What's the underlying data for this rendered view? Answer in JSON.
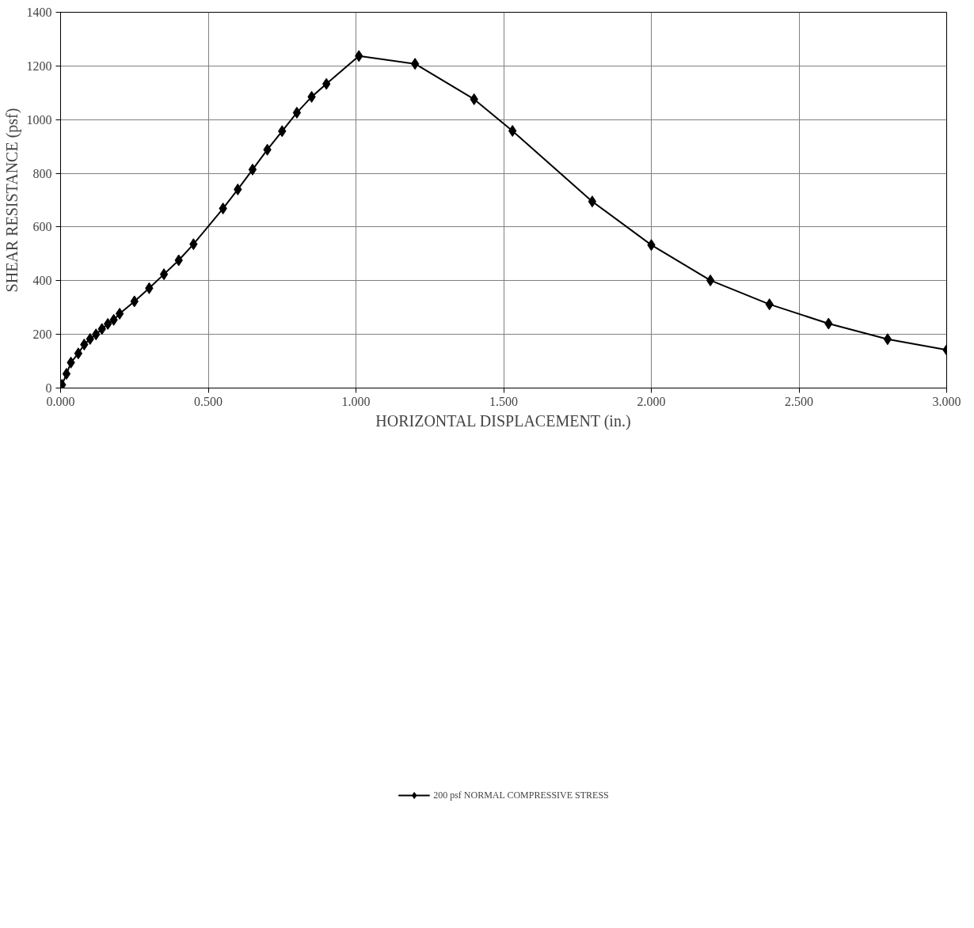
{
  "chart_data": {
    "type": "line",
    "xlabel": "HORIZONTAL DISPLACEMENT (in.)",
    "ylabel": "SHEAR RESISTANCE (psf)",
    "xlim": [
      0,
      3
    ],
    "ylim": [
      0,
      1400
    ],
    "xticks": [
      {
        "value": 0,
        "label": "0.000"
      },
      {
        "value": 0.5,
        "label": "0.500"
      },
      {
        "value": 1,
        "label": "1.000"
      },
      {
        "value": 1.5,
        "label": "1.500"
      },
      {
        "value": 2,
        "label": "2.000"
      },
      {
        "value": 2.5,
        "label": "2.500"
      },
      {
        "value": 3,
        "label": "3.000"
      }
    ],
    "yticks": [
      0,
      200,
      400,
      600,
      800,
      1000,
      1200,
      1400
    ],
    "grid": true,
    "legend": "bottom",
    "marker": "diamond",
    "line_style": "solid",
    "series": [
      {
        "name": "200 psf NORMAL COMPRESSIVE STRESS",
        "color": "#000000",
        "x": [
          0,
          0.005,
          0.02,
          0.035,
          0.06,
          0.08,
          0.1,
          0.12,
          0.14,
          0.16,
          0.18,
          0.2,
          0.25,
          0.3,
          0.35,
          0.4,
          0.45,
          0.55,
          0.6,
          0.65,
          0.7,
          0.75,
          0.8,
          0.85,
          0.9,
          1.01,
          1.2,
          1.4,
          1.53,
          1.8,
          2.0,
          2.2,
          2.4,
          2.6,
          2.8,
          3.0
        ],
        "values": [
          0,
          12,
          53,
          95,
          129,
          162,
          183,
          200,
          220,
          239,
          254,
          277,
          323,
          372,
          424,
          476,
          536,
          669,
          740,
          814,
          888,
          957,
          1026,
          1085,
          1133,
          1237,
          1208,
          1076,
          958,
          695,
          533,
          401,
          312,
          240,
          182,
          142
        ]
      }
    ]
  }
}
